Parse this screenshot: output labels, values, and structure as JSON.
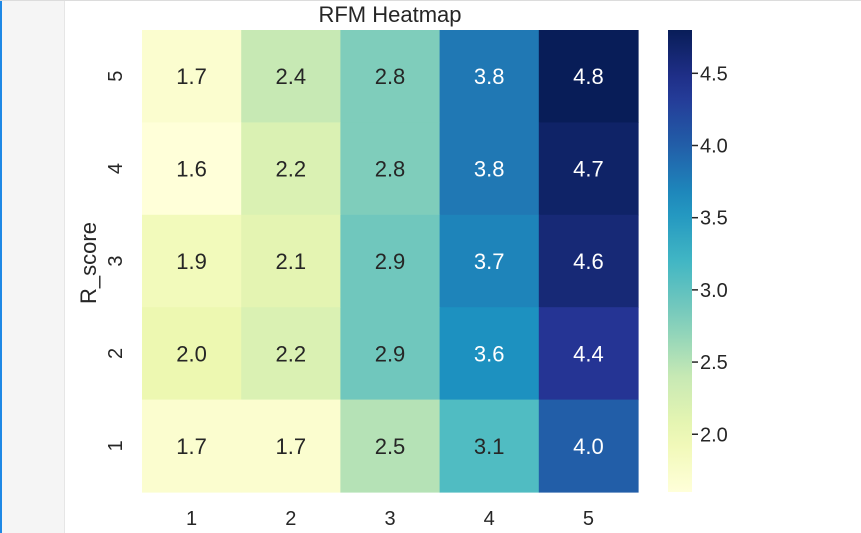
{
  "chart_data": {
    "type": "heatmap",
    "title": "RFM Heatmap",
    "xlabel": "",
    "ylabel": "R_score",
    "x_categories": [
      "1",
      "2",
      "3",
      "4",
      "5"
    ],
    "y_categories": [
      "5",
      "4",
      "3",
      "2",
      "1"
    ],
    "values": [
      [
        1.7,
        2.4,
        2.8,
        3.8,
        4.8
      ],
      [
        1.6,
        2.2,
        2.8,
        3.8,
        4.7
      ],
      [
        1.9,
        2.1,
        2.9,
        3.7,
        4.6
      ],
      [
        2.0,
        2.2,
        2.9,
        3.6,
        4.4
      ],
      [
        1.7,
        1.7,
        2.5,
        3.1,
        4.0
      ]
    ],
    "annotations": [
      [
        "1.7",
        "2.4",
        "2.8",
        "3.8",
        "4.8"
      ],
      [
        "1.6",
        "2.2",
        "2.8",
        "3.8",
        "4.7"
      ],
      [
        "1.9",
        "2.1",
        "2.9",
        "3.7",
        "4.6"
      ],
      [
        "2.0",
        "2.2",
        "2.9",
        "3.6",
        "4.4"
      ],
      [
        "1.7",
        "1.7",
        "2.5",
        "3.1",
        "4.0"
      ]
    ],
    "colormap": "YlGnBu",
    "colorbar": {
      "range": [
        1.6,
        4.8
      ],
      "ticks": [
        2.0,
        2.5,
        3.0,
        3.5,
        4.0,
        4.5
      ],
      "tick_labels": [
        "2.0",
        "2.5",
        "3.0",
        "3.5",
        "4.0",
        "4.5"
      ]
    },
    "grid": false,
    "legend": "colorbar-right"
  }
}
